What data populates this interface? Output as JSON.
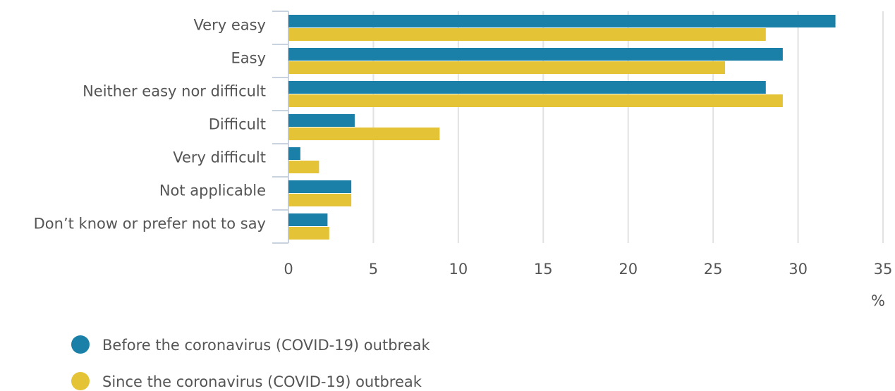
{
  "chart_data": {
    "type": "bar",
    "orientation": "horizontal",
    "categories": [
      "Very easy",
      "Easy",
      "Neither easy nor difficult",
      "Difficult",
      "Very difficult",
      "Not applicable",
      "Don’t know or prefer not to say"
    ],
    "series": [
      {
        "name": "Before the coronavirus (COVID-19) outbreak",
        "color": "#1a80a8",
        "values": [
          32.2,
          29.1,
          28.1,
          3.9,
          0.7,
          3.7,
          2.3
        ]
      },
      {
        "name": "Since the coronavirus (COVID-19) outbreak",
        "color": "#e4c336",
        "values": [
          28.1,
          25.7,
          29.1,
          8.9,
          1.8,
          3.7,
          2.4
        ]
      }
    ],
    "xlabel": "%",
    "xlim": [
      0,
      35
    ],
    "xticks": [
      0,
      5,
      10,
      15,
      20,
      25,
      30,
      35
    ],
    "grid": true
  }
}
